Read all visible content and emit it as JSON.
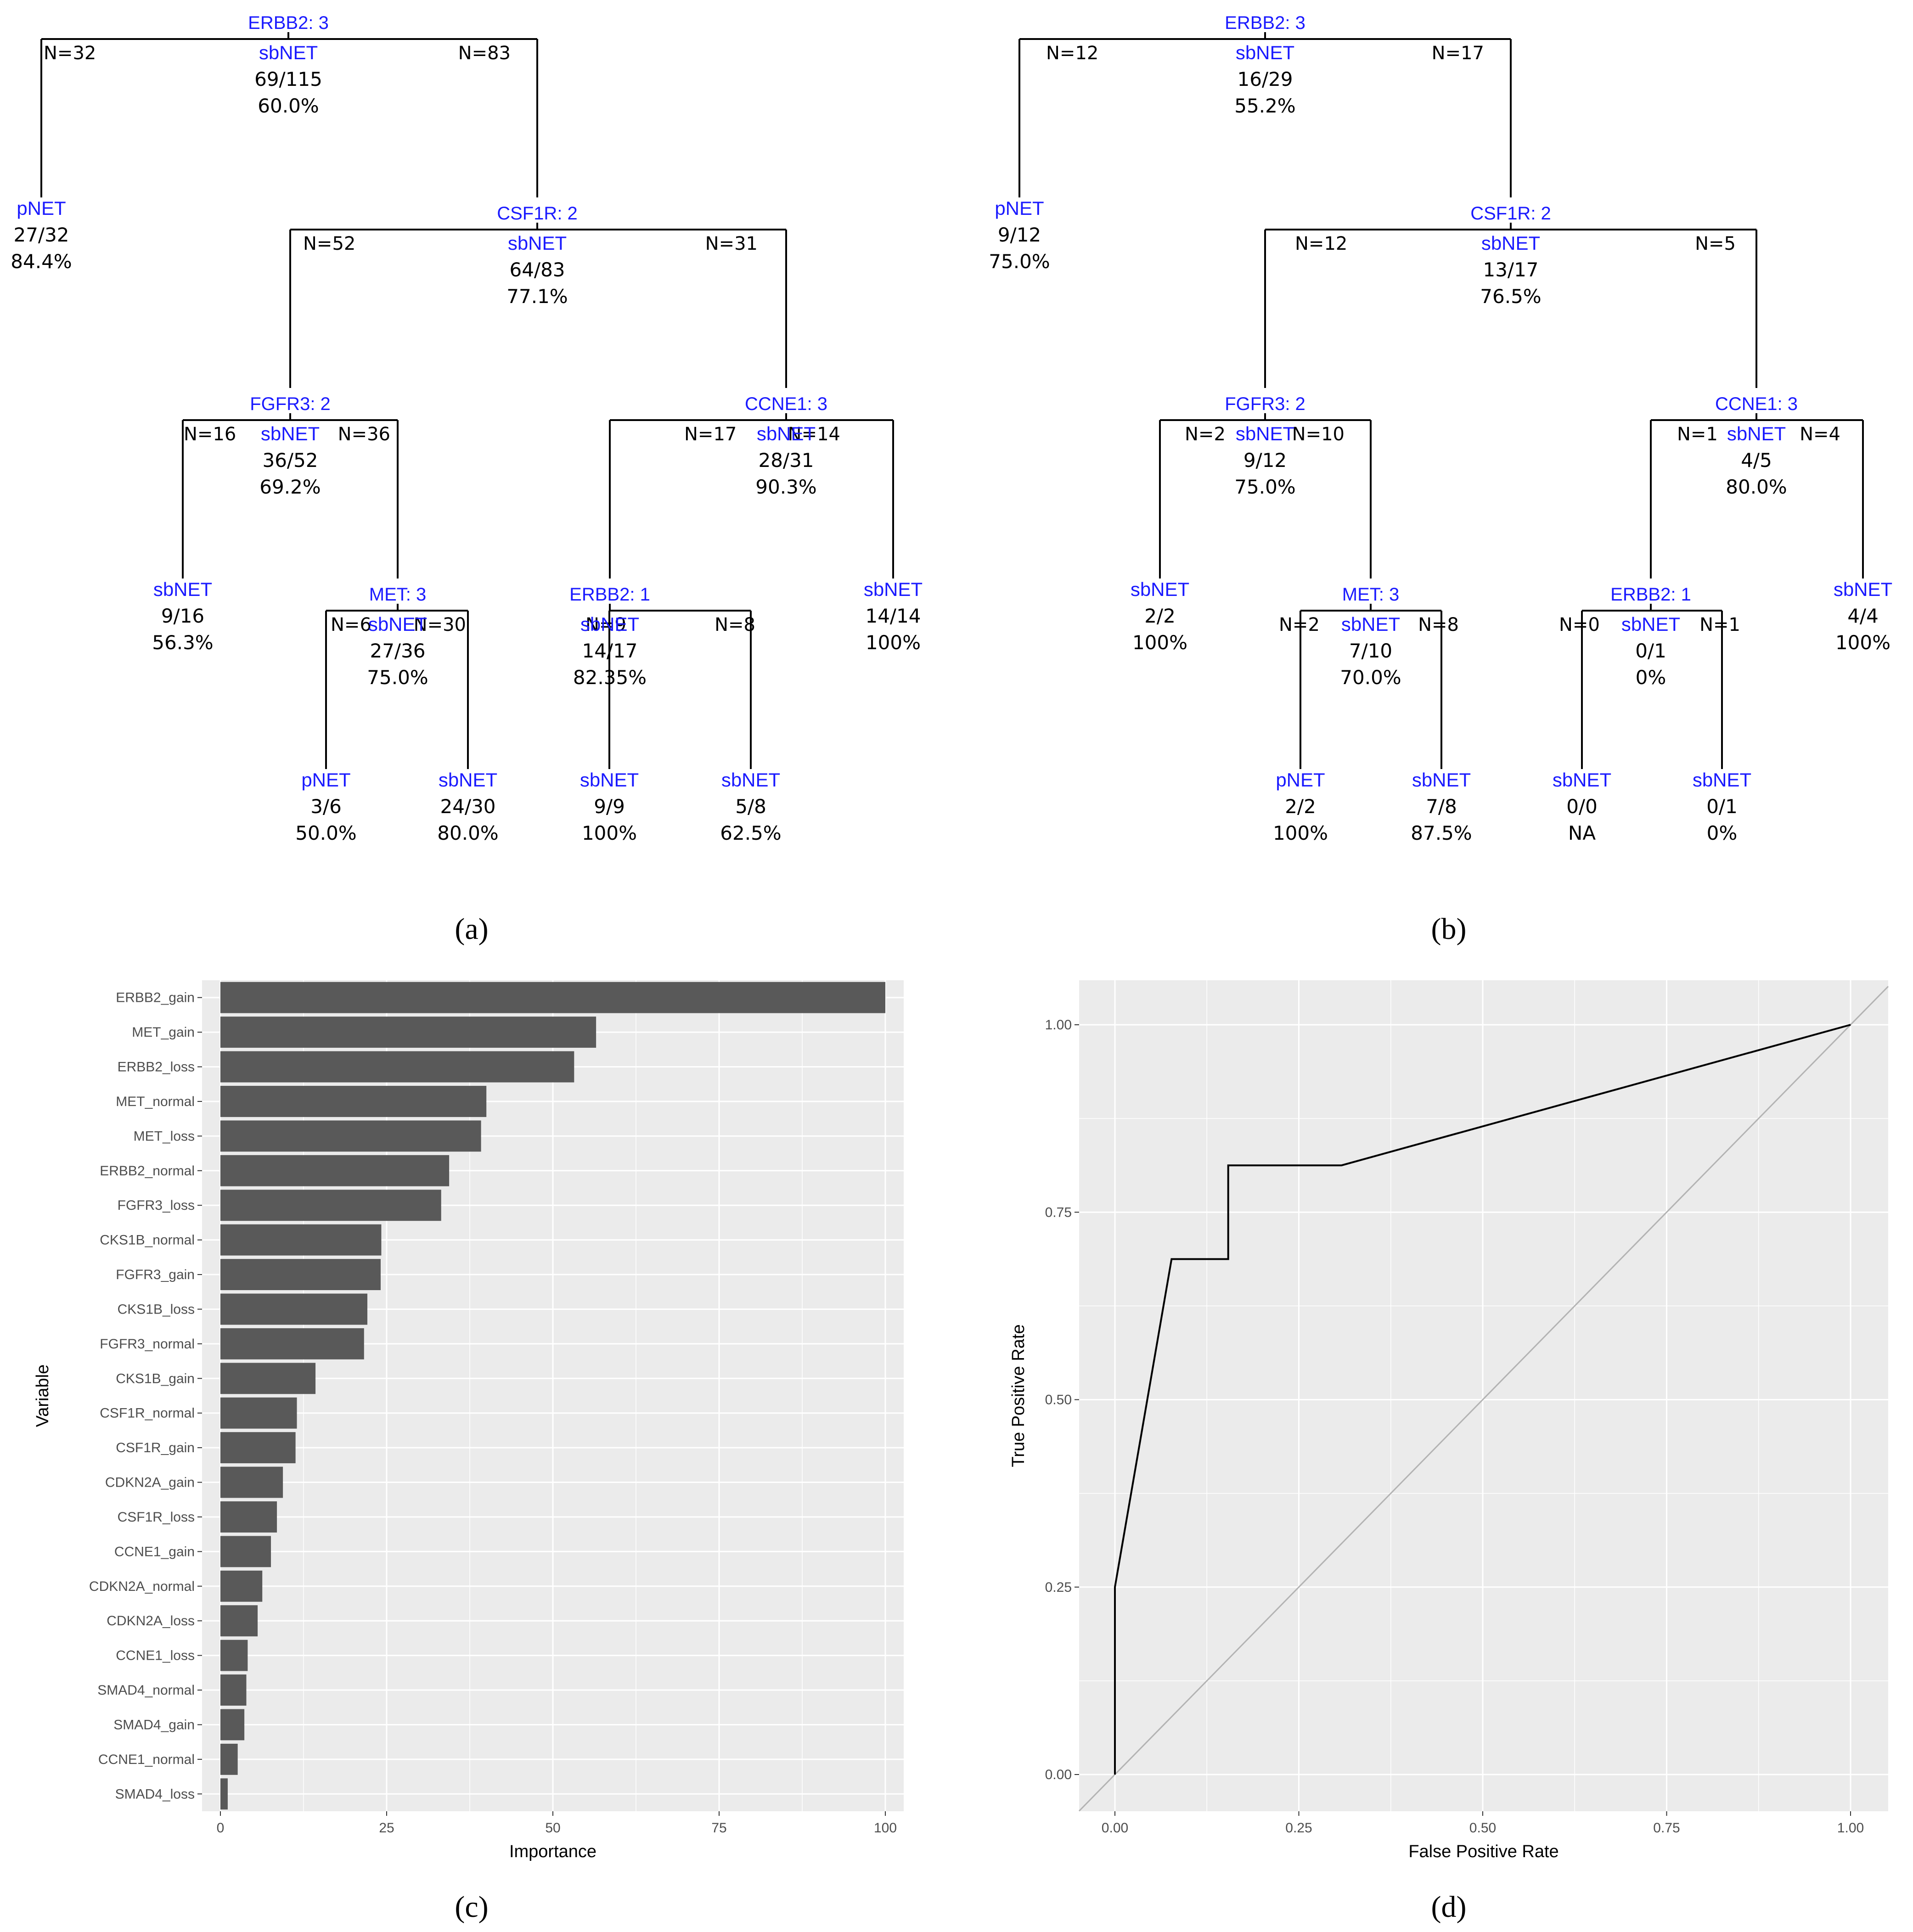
{
  "colors": {
    "split_label": "#1a1aff",
    "panel_bg": "#ebebeb",
    "grid_major": "#ffffff",
    "bar_fill": "#595959",
    "roc_line": "#000000",
    "diagonal": "#b3b3b3",
    "tick_text": "#4d4d4d"
  },
  "panel_labels": [
    "(a)",
    "(b)",
    "(c)",
    "(d)"
  ],
  "chart_data": [
    {
      "type": "tree",
      "panel": "(a)",
      "root": {
        "split": "ERBB2: 3",
        "cls": "sbNET",
        "frac": "69/115",
        "pct": "60.0%",
        "children": [
          {
            "n": "N=32",
            "cls": "pNET",
            "frac": "27/32",
            "pct": "84.4%"
          },
          {
            "n": "N=83",
            "split": "CSF1R: 2",
            "cls": "sbNET",
            "frac": "64/83",
            "pct": "77.1%",
            "children": [
              {
                "n": "N=52",
                "split": "FGFR3: 2",
                "cls": "sbNET",
                "frac": "36/52",
                "pct": "69.2%",
                "children": [
                  {
                    "n": "N=16",
                    "cls": "sbNET",
                    "frac": "9/16",
                    "pct": "56.3%"
                  },
                  {
                    "n": "N=36",
                    "split": "MET: 3",
                    "cls": "sbNET",
                    "frac": "27/36",
                    "pct": "75.0%",
                    "children": [
                      {
                        "n": "N=6",
                        "cls": "pNET",
                        "frac": "3/6",
                        "pct": "50.0%"
                      },
                      {
                        "n": "N=30",
                        "cls": "sbNET",
                        "frac": "24/30",
                        "pct": "80.0%"
                      }
                    ]
                  }
                ]
              },
              {
                "n": "N=31",
                "split": "CCNE1: 3",
                "cls": "sbNET",
                "frac": "28/31",
                "pct": "90.3%",
                "children": [
                  {
                    "n": "N=17",
                    "split": "ERBB2: 1",
                    "cls": "sbNET",
                    "frac": "14/17",
                    "pct": "82.35%",
                    "children": [
                      {
                        "n": "N=9",
                        "cls": "sbNET",
                        "frac": "9/9",
                        "pct": "100%"
                      },
                      {
                        "n": "N=8",
                        "cls": "sbNET",
                        "frac": "5/8",
                        "pct": "62.5%"
                      }
                    ]
                  },
                  {
                    "n": "N=14",
                    "cls": "sbNET",
                    "frac": "14/14",
                    "pct": "100%"
                  }
                ]
              }
            ]
          }
        ]
      }
    },
    {
      "type": "tree",
      "panel": "(b)",
      "root": {
        "split": "ERBB2: 3",
        "cls": "sbNET",
        "frac": "16/29",
        "pct": "55.2%",
        "children": [
          {
            "n": "N=12",
            "cls": "pNET",
            "frac": "9/12",
            "pct": "75.0%"
          },
          {
            "n": "N=17",
            "split": "CSF1R: 2",
            "cls": "sbNET",
            "frac": "13/17",
            "pct": "76.5%",
            "children": [
              {
                "n": "N=12",
                "split": "FGFR3: 2",
                "cls": "sbNET",
                "frac": "9/12",
                "pct": "75.0%",
                "children": [
                  {
                    "n": "N=2",
                    "cls": "sbNET",
                    "frac": "2/2",
                    "pct": "100%"
                  },
                  {
                    "n": "N=10",
                    "split": "MET: 3",
                    "cls": "sbNET",
                    "frac": "7/10",
                    "pct": "70.0%",
                    "children": [
                      {
                        "n": "N=2",
                        "cls": "pNET",
                        "frac": "2/2",
                        "pct": "100%"
                      },
                      {
                        "n": "N=8",
                        "cls": "sbNET",
                        "frac": "7/8",
                        "pct": "87.5%"
                      }
                    ]
                  }
                ]
              },
              {
                "n": "N=5",
                "split": "CCNE1: 3",
                "cls": "sbNET",
                "frac": "4/5",
                "pct": "80.0%",
                "children": [
                  {
                    "n": "N=1",
                    "split": "ERBB2: 1",
                    "cls": "sbNET",
                    "frac": "0/1",
                    "pct": "0%",
                    "children": [
                      {
                        "n": "N=0",
                        "cls": "sbNET",
                        "frac": "0/0",
                        "pct": "NA"
                      },
                      {
                        "n": "N=1",
                        "cls": "sbNET",
                        "frac": "0/1",
                        "pct": "0%"
                      }
                    ]
                  },
                  {
                    "n": "N=4",
                    "cls": "sbNET",
                    "frac": "4/4",
                    "pct": "100%"
                  }
                ]
              }
            ]
          }
        ]
      }
    },
    {
      "type": "bar",
      "panel": "(c)",
      "orientation": "horizontal",
      "xlabel": "Importance",
      "ylabel": "Variable",
      "xlim": [
        0,
        100
      ],
      "xticks": [
        0,
        25,
        50,
        75,
        100
      ],
      "categories": [
        "ERBB2_gain",
        "MET_gain",
        "ERBB2_loss",
        "MET_normal",
        "MET_loss",
        "ERBB2_normal",
        "FGFR3_loss",
        "CKS1B_normal",
        "FGFR3_gain",
        "CKS1B_loss",
        "FGFR3_normal",
        "CKS1B_gain",
        "CSF1R_normal",
        "CSF1R_gain",
        "CDKN2A_gain",
        "CSF1R_loss",
        "CCNE1_gain",
        "CDKN2A_normal",
        "CDKN2A_loss",
        "CCNE1_loss",
        "SMAD4_normal",
        "SMAD4_gain",
        "CCNE1_normal",
        "SMAD4_loss"
      ],
      "values": [
        100,
        56.5,
        53.2,
        40,
        39.2,
        34.4,
        33.2,
        24.2,
        24.1,
        22.1,
        21.6,
        14.3,
        11.5,
        11.3,
        9.4,
        8.5,
        7.6,
        6.3,
        5.6,
        4.1,
        3.9,
        3.6,
        2.6,
        1.1
      ]
    },
    {
      "type": "line",
      "panel": "(d)",
      "xlabel": "False Positive Rate",
      "ylabel": "True Positive Rate",
      "xlim": [
        0,
        1
      ],
      "ylim": [
        0,
        1
      ],
      "xticks": [
        "0.00",
        "0.25",
        "0.50",
        "0.75",
        "1.00"
      ],
      "yticks": [
        "0.00",
        "0.25",
        "0.50",
        "0.75",
        "1.00"
      ],
      "series": [
        {
          "name": "ROC",
          "x": [
            0,
            0,
            0.077,
            0.154,
            0.154,
            0.308,
            1.0
          ],
          "y": [
            0,
            0.25,
            0.6875,
            0.6875,
            0.8125,
            0.8125,
            1.0
          ]
        },
        {
          "name": "chance",
          "x": [
            0,
            1
          ],
          "y": [
            0,
            1
          ]
        }
      ]
    }
  ]
}
